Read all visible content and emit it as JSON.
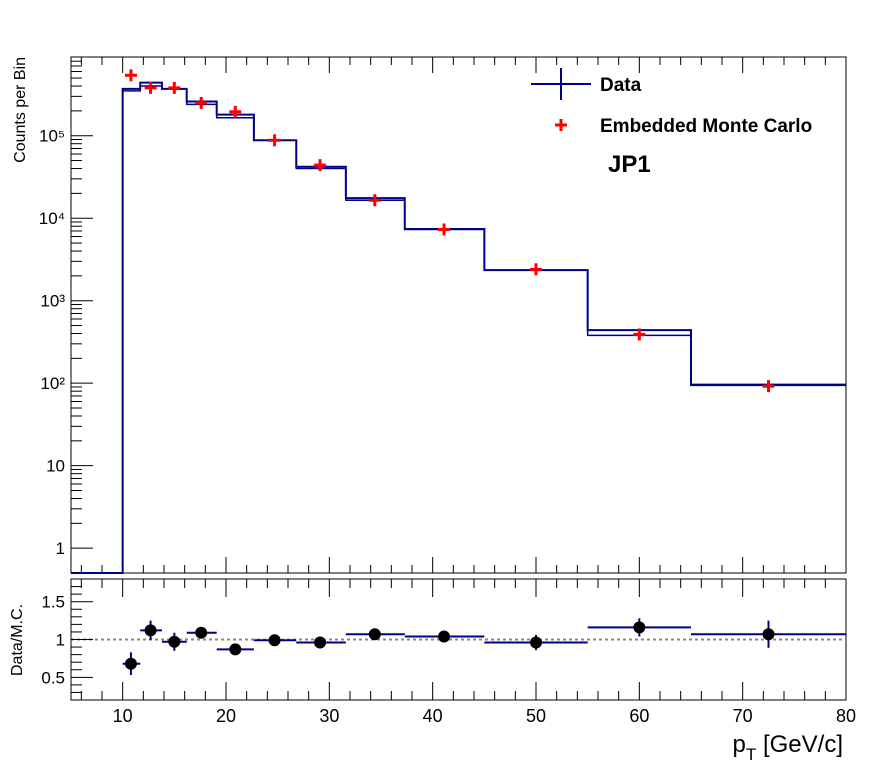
{
  "chart_data": [
    {
      "type": "line",
      "panel": "top",
      "ylabel": "Counts per Bin",
      "yscale": "log",
      "ylim": [
        0.5,
        900000
      ],
      "xlim": [
        5,
        80
      ],
      "y_tick_labels": [
        "1",
        "10",
        "10²",
        "10³",
        "10⁴",
        "10⁵"
      ],
      "legend": {
        "placement": "top-right",
        "data_label": "Data",
        "mc_label": "Embedded Monte Carlo"
      },
      "annotation": "JP1",
      "series": [
        {
          "name": "Data",
          "style": "step",
          "color": "#00008b",
          "bins": [
            {
              "x0": 5,
              "x1": 10,
              "y": 0.5
            },
            {
              "x0": 10,
              "x1": 11.7,
              "y": 370000
            },
            {
              "x0": 11.7,
              "x1": 13.8,
              "y": 440000
            },
            {
              "x0": 13.8,
              "x1": 16.2,
              "y": 370000
            },
            {
              "x0": 16.2,
              "x1": 19.1,
              "y": 260000
            },
            {
              "x0": 19.1,
              "x1": 22.7,
              "y": 180000
            },
            {
              "x0": 22.7,
              "x1": 26.8,
              "y": 88000
            },
            {
              "x0": 26.8,
              "x1": 31.6,
              "y": 42000
            },
            {
              "x0": 31.6,
              "x1": 37.3,
              "y": 17500
            },
            {
              "x0": 37.3,
              "x1": 45,
              "y": 7400
            },
            {
              "x0": 45,
              "x1": 55,
              "y": 2350
            },
            {
              "x0": 55,
              "x1": 65,
              "y": 440
            },
            {
              "x0": 65,
              "x1": 80,
              "y": 96
            }
          ]
        },
        {
          "name": "Embedded Monte Carlo",
          "style": "markers",
          "color": "#ff0000",
          "x": [
            10.8,
            12.7,
            15.0,
            17.6,
            20.9,
            24.7,
            29.1,
            34.4,
            41.1,
            50.0,
            60.0,
            72.5
          ],
          "y": [
            540000,
            380000,
            380000,
            250000,
            195000,
            88000,
            44000,
            16500,
            7300,
            2400,
            390,
            92
          ],
          "bin_widths": [
            [
              10,
              11.7
            ],
            [
              11.7,
              13.8
            ],
            [
              13.8,
              16.2
            ],
            [
              16.2,
              19.1
            ],
            [
              19.1,
              22.7
            ],
            [
              22.7,
              26.8
            ],
            [
              26.8,
              31.6
            ],
            [
              31.6,
              37.3
            ],
            [
              37.3,
              45
            ],
            [
              45,
              55
            ],
            [
              55,
              65
            ],
            [
              65,
              80
            ]
          ],
          "mc_step_y": [
            0.5,
            350000,
            400000,
            370000,
            240000,
            165000,
            88000,
            40000,
            16500,
            7300,
            2350,
            380,
            94
          ]
        }
      ]
    },
    {
      "type": "scatter",
      "panel": "bottom",
      "ylabel": "Data/M.C.",
      "xlabel": "pT [GeV/c]",
      "xlabel_main": "p",
      "xlabel_sub": "T",
      "xlabel_rest": " [GeV/c]",
      "xlim": [
        5,
        80
      ],
      "ylim": [
        0.2,
        1.8
      ],
      "y_ticks": [
        0.5,
        1,
        1.5
      ],
      "y_tick_labels": [
        "0.5",
        "1",
        "1.5"
      ],
      "x_ticks": [
        10,
        20,
        30,
        40,
        50,
        60,
        70,
        80
      ],
      "x_tick_labels": [
        "10",
        "20",
        "30",
        "40",
        "50",
        "60",
        "70",
        "80"
      ],
      "reference_line": 1.0,
      "series": [
        {
          "name": "Data/M.C.",
          "color": "#000000",
          "points": [
            {
              "x": 10.8,
              "y": 0.68,
              "ex": [
                10,
                11.7
              ],
              "ey": 0.15
            },
            {
              "x": 12.7,
              "y": 1.12,
              "ex": [
                11.7,
                13.8
              ],
              "ey": 0.13
            },
            {
              "x": 15.0,
              "y": 0.97,
              "ex": [
                13.8,
                16.2
              ],
              "ey": 0.12
            },
            {
              "x": 17.6,
              "y": 1.09,
              "ex": [
                16.2,
                19.1
              ],
              "ey": 0.05
            },
            {
              "x": 20.9,
              "y": 0.87,
              "ex": [
                19.1,
                22.7
              ],
              "ey": 0.04
            },
            {
              "x": 24.7,
              "y": 0.99,
              "ex": [
                22.7,
                26.8
              ],
              "ey": 0.04
            },
            {
              "x": 29.1,
              "y": 0.96,
              "ex": [
                26.8,
                31.6
              ],
              "ey": 0.04
            },
            {
              "x": 34.4,
              "y": 1.07,
              "ex": [
                31.6,
                37.3
              ],
              "ey": 0.04
            },
            {
              "x": 41.1,
              "y": 1.04,
              "ex": [
                37.3,
                45
              ],
              "ey": 0.04
            },
            {
              "x": 50.0,
              "y": 0.96,
              "ex": [
                45,
                55
              ],
              "ey": 0.1
            },
            {
              "x": 60.0,
              "y": 1.16,
              "ex": [
                55,
                65
              ],
              "ey": 0.12
            },
            {
              "x": 72.5,
              "y": 1.07,
              "ex": [
                65,
                80
              ],
              "ey": 0.18
            }
          ]
        }
      ]
    }
  ]
}
